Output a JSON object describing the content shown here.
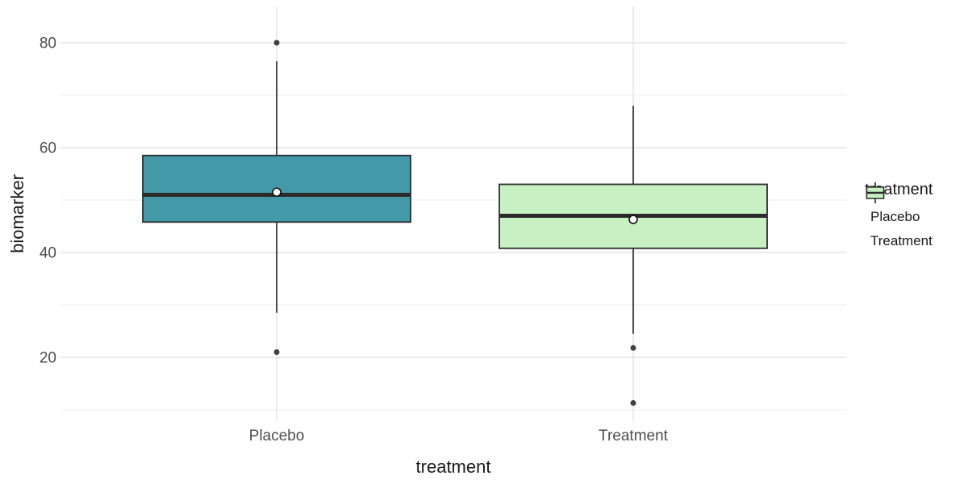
{
  "chart_data": {
    "type": "boxplot",
    "title": "",
    "xlabel": "treatment",
    "ylabel": "biomarker",
    "categories": [
      "Placebo",
      "Treatment"
    ],
    "y_ticks": [
      20,
      40,
      60,
      80
    ],
    "y_minor_ticks": [
      10,
      30,
      50,
      70
    ],
    "ylim": [
      7.8,
      86.9
    ],
    "grid": true,
    "legend": {
      "title": "treatment",
      "position": "right",
      "entries": [
        {
          "label": "Placebo",
          "color": "#4499A9"
        },
        {
          "label": "Treatment",
          "color": "#C7F1C3"
        }
      ]
    },
    "series": [
      {
        "name": "Placebo",
        "fill": "#4499A9",
        "whisker_low": 28.5,
        "q1": 45.8,
        "median": 51,
        "q3": 58.5,
        "whisker_high": 76.5,
        "mean": 51.5,
        "outliers": [
          80,
          21
        ]
      },
      {
        "name": "Treatment",
        "fill": "#C7F1C3",
        "whisker_low": 24.5,
        "q1": 40.8,
        "median": 47,
        "q3": 53,
        "whisker_high": 68,
        "mean": 46.3,
        "outliers": [
          21.8,
          11.3
        ]
      }
    ],
    "style": {
      "box_border": "#2d2d2d",
      "median_color": "#2b2b2b",
      "whisker_color": "#2d2d2d",
      "outlier_color": "#404040",
      "mean_fill": "#ffffff",
      "mean_stroke": "#111111",
      "grid_major": "#e3e3e3",
      "grid_minor": "#f0f0f0",
      "tick_label_color": "#4d4d4d",
      "axis_title_color": "#1a1a1a"
    }
  }
}
